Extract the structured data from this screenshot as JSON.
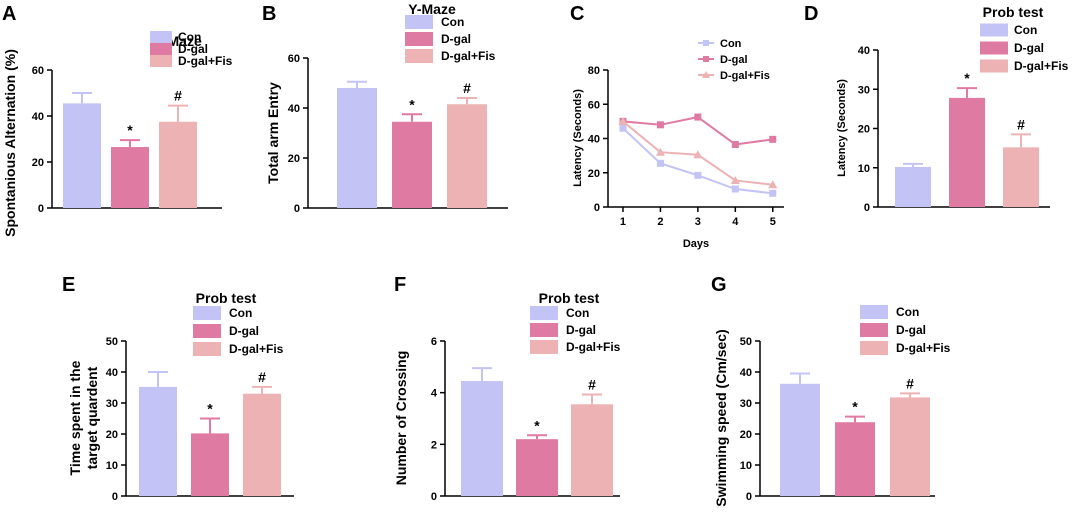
{
  "colors": {
    "con": "#c3c3f5",
    "dgal": "#df7aa2",
    "fis": "#ecb2b4",
    "axis": "#000000"
  },
  "chart_data": [
    {
      "panel": "A",
      "type": "bar",
      "title": "Y-Maze",
      "ylabel": "Spontanious Alternation (%)",
      "xlabel": "",
      "ylim": [
        0,
        60
      ],
      "yticks": [
        "0",
        "20",
        "40",
        "60"
      ],
      "categories": [
        "Con",
        "D-gal",
        "D-gal+Fis"
      ],
      "values": [
        45.5,
        26.5,
        37.5
      ],
      "errors": [
        4.5,
        3,
        7
      ],
      "annotations": [
        "",
        "*",
        "#"
      ],
      "legend": [
        "Con",
        "D-gal",
        "D-gal+Fis"
      ]
    },
    {
      "panel": "B",
      "type": "bar",
      "title": "Y-Maze",
      "ylabel": "Total arm Entry",
      "xlabel": "",
      "ylim": [
        0,
        60
      ],
      "yticks": [
        "0",
        "20",
        "40",
        "60"
      ],
      "categories": [
        "Con",
        "D-gal",
        "D-gal+Fis"
      ],
      "values": [
        48,
        34.5,
        41.5
      ],
      "errors": [
        2.5,
        3,
        2.5
      ],
      "annotations": [
        "",
        "*",
        "#"
      ],
      "legend": [
        "Con",
        "D-gal",
        "D-gal+Fis"
      ]
    },
    {
      "panel": "C",
      "type": "line",
      "title": "",
      "ylabel": "Latency (Seconds)",
      "xlabel": "Days",
      "ylim": [
        0,
        80
      ],
      "yticks": [
        "0",
        "20",
        "40",
        "60",
        "80"
      ],
      "xlim": [
        0.6,
        5.3
      ],
      "x": [
        1,
        2,
        3,
        4,
        5
      ],
      "xticks": [
        "1",
        "2",
        "3",
        "4",
        "5"
      ],
      "series": [
        {
          "name": "Con",
          "values": [
            46,
            25.5,
            18.5,
            10.5,
            8
          ],
          "marker": "square"
        },
        {
          "name": "D-gal",
          "values": [
            50,
            48,
            52.5,
            36.5,
            39.5
          ],
          "marker": "square"
        },
        {
          "name": "D-gal+Fis",
          "values": [
            50,
            32,
            30.5,
            15.5,
            13
          ],
          "marker": "triangle"
        }
      ],
      "legend": [
        "Con",
        "D-gal",
        "D-gal+Fis"
      ]
    },
    {
      "panel": "D",
      "type": "bar",
      "title": "Prob test",
      "ylabel": "Latency (Seconds)",
      "xlabel": "",
      "ylim": [
        0,
        40
      ],
      "yticks": [
        "0",
        "10",
        "20",
        "30",
        "40"
      ],
      "categories": [
        "Con",
        "D-gal",
        "D-gal+Fis"
      ],
      "values": [
        10.2,
        27.8,
        15.2
      ],
      "errors": [
        0.8,
        2.5,
        3.3
      ],
      "annotations": [
        "",
        "*",
        "#"
      ],
      "legend": [
        "Con",
        "D-gal",
        "D-gal+Fis"
      ]
    },
    {
      "panel": "E",
      "type": "bar",
      "title": "Prob test",
      "ylabel": "Time spent in the target quardent",
      "xlabel": "",
      "ylim": [
        0,
        50
      ],
      "yticks": [
        "0",
        "10",
        "20",
        "30",
        "40",
        "50"
      ],
      "categories": [
        "Con",
        "D-gal",
        "D-gal+Fis"
      ],
      "values": [
        35.2,
        20.2,
        33
      ],
      "errors": [
        4.8,
        4.8,
        2.2
      ],
      "annotations": [
        "",
        "*",
        "#"
      ],
      "legend": [
        "Con",
        "D-gal",
        "D-gal+Fis"
      ]
    },
    {
      "panel": "F",
      "type": "bar",
      "title": "Prob test",
      "ylabel": "Number of Crossing",
      "xlabel": "",
      "ylim": [
        0,
        6
      ],
      "yticks": [
        "0",
        "2",
        "4",
        "6"
      ],
      "categories": [
        "Con",
        "D-gal",
        "D-gal+Fis"
      ],
      "values": [
        4.45,
        2.2,
        3.55
      ],
      "errors": [
        0.5,
        0.15,
        0.38
      ],
      "annotations": [
        "",
        "*",
        "#"
      ],
      "legend": [
        "Con",
        "D-gal",
        "D-gal+Fis"
      ]
    },
    {
      "panel": "G",
      "type": "bar",
      "title": "",
      "ylabel": "Swimming speed (Cm/sec)",
      "xlabel": "",
      "ylim": [
        0,
        50
      ],
      "yticks": [
        "0",
        "10",
        "20",
        "30",
        "40",
        "50"
      ],
      "categories": [
        "Con",
        "D-gal",
        "D-gal+Fis"
      ],
      "values": [
        36.2,
        23.8,
        31.8
      ],
      "errors": [
        3.3,
        1.8,
        1.3
      ],
      "annotations": [
        "",
        "*",
        "#"
      ],
      "legend": [
        "Con",
        "D-gal",
        "D-gal+Fis"
      ]
    }
  ]
}
